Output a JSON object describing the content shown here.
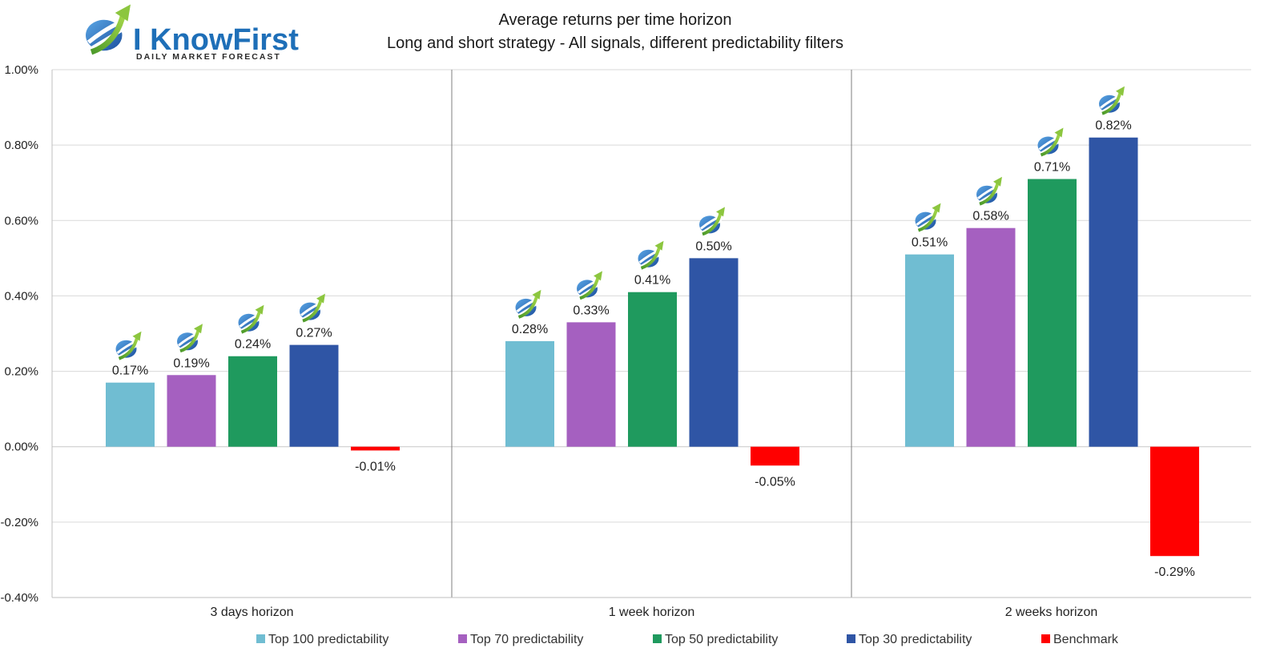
{
  "logo": {
    "name": "I KnowFirst",
    "tagline": "Daily Market Forecast"
  },
  "chart_data": {
    "type": "bar",
    "title": "Average returns per time horizon",
    "subtitle": "Long and short strategy - All signals, different predictability filters",
    "categories": [
      "3 days horizon",
      "1 week horizon",
      "2 weeks horizon"
    ],
    "series": [
      {
        "name": "Top 100 predictability",
        "color": "#70bdd2",
        "values": [
          0.17,
          0.28,
          0.51
        ],
        "labels": [
          "0.17%",
          "0.28%",
          "0.51%"
        ]
      },
      {
        "name": "Top 70 predictability",
        "color": "#a560c0",
        "values": [
          0.19,
          0.33,
          0.58
        ],
        "labels": [
          "0.19%",
          "0.33%",
          "0.58%"
        ]
      },
      {
        "name": "Top 50 predictability",
        "color": "#1f9a5e",
        "values": [
          0.24,
          0.41,
          0.71
        ],
        "labels": [
          "0.24%",
          "0.41%",
          "0.71%"
        ]
      },
      {
        "name": "Top 30 predictability",
        "color": "#2f55a5",
        "values": [
          0.27,
          0.5,
          0.82
        ],
        "labels": [
          "0.27%",
          "0.50%",
          "0.82%"
        ]
      },
      {
        "name": "Benchmark",
        "color": "#ff0000",
        "values": [
          -0.01,
          -0.05,
          -0.29
        ],
        "labels": [
          "-0.01%",
          "-0.05%",
          "-0.29%"
        ]
      }
    ],
    "ylim": [
      -0.4,
      1.0
    ],
    "yticks": [
      "1.00%",
      "0.80%",
      "0.60%",
      "0.40%",
      "0.20%",
      "0.00%",
      "-0.20%",
      "-0.40%"
    ],
    "ytick_values": [
      1.0,
      0.8,
      0.6,
      0.4,
      0.2,
      0.0,
      -0.2,
      -0.4
    ],
    "grid": true,
    "legend_position": "bottom",
    "marker_icon": "i-know-first-logo-icon"
  }
}
